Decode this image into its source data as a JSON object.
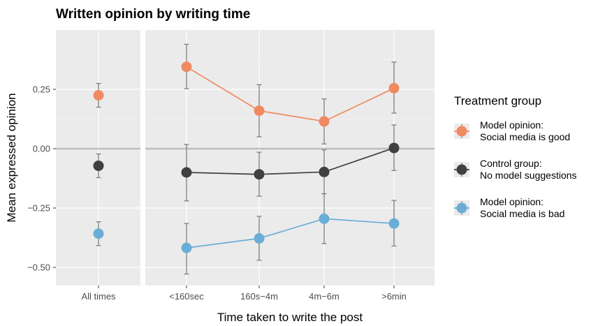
{
  "chart_data": {
    "type": "line",
    "title": "Written opinion by writing time",
    "xlabel": "Time taken to write the post",
    "ylabel": "Mean expressed opinion",
    "ylim": [
      -0.58,
      0.5
    ],
    "y_ticks": [
      -0.5,
      -0.25,
      0.0,
      0.25
    ],
    "y_tick_labels": [
      "−0.50",
      "−0.25",
      "0.00",
      "0.25"
    ],
    "grid": true,
    "legend_position": "right",
    "legend_title": "Treatment group",
    "panels": [
      {
        "categories": [
          "All times"
        ]
      },
      {
        "categories": [
          "<160sec",
          "160s−4m",
          "4m−6m",
          ">6min"
        ]
      }
    ],
    "series": [
      {
        "name": "Model opinion:\nSocial media is good",
        "color": "#f08a62",
        "all_times": {
          "value": 0.225,
          "lo": 0.175,
          "hi": 0.275
        },
        "values": [
          0.345,
          0.16,
          0.115,
          0.255
        ],
        "lo": [
          0.253,
          0.05,
          0.02,
          0.15
        ],
        "hi": [
          0.44,
          0.27,
          0.21,
          0.365
        ]
      },
      {
        "name": "Control group:\nNo model suggestions",
        "color": "#404040",
        "all_times": {
          "value": -0.072,
          "lo": -0.122,
          "hi": -0.022
        },
        "values": [
          -0.1,
          -0.108,
          -0.098,
          0.003
        ],
        "lo": [
          -0.22,
          -0.2,
          -0.19,
          -0.092
        ],
        "hi": [
          0.018,
          -0.015,
          -0.005,
          0.1
        ]
      },
      {
        "name": "Model opinion:\nSocial media is bad",
        "color": "#6aaed6",
        "all_times": {
          "value": -0.358,
          "lo": -0.408,
          "hi": -0.308
        },
        "values": [
          -0.418,
          -0.378,
          -0.295,
          -0.315
        ],
        "lo": [
          -0.528,
          -0.47,
          -0.4,
          -0.41
        ],
        "hi": [
          -0.315,
          -0.285,
          -0.19,
          -0.218
        ]
      }
    ]
  }
}
